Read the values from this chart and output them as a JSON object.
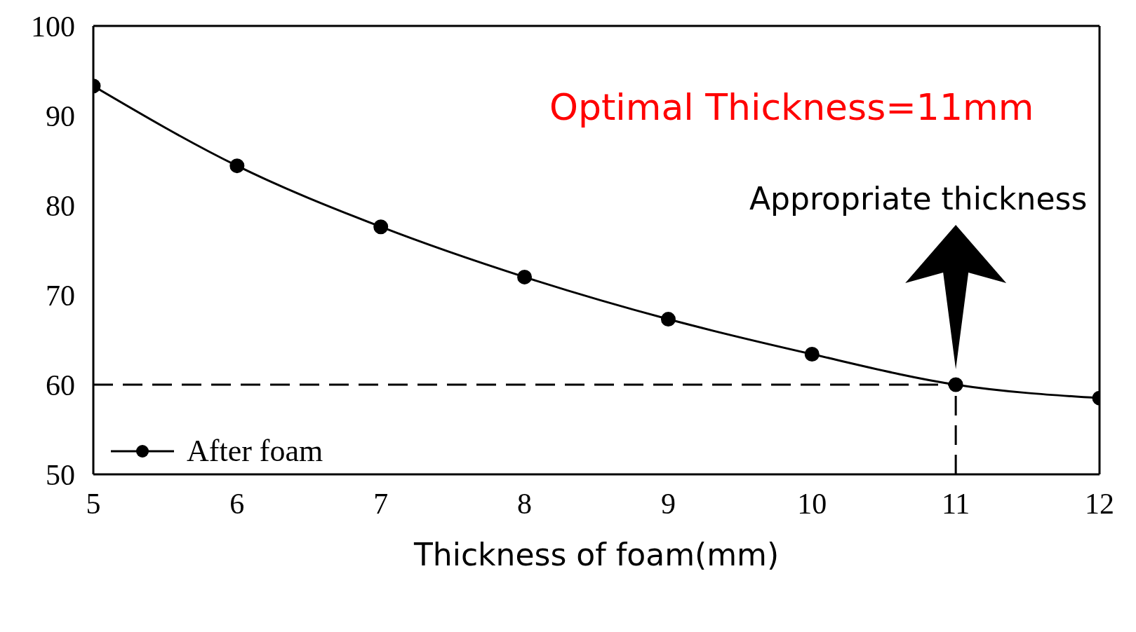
{
  "chart_data": {
    "type": "line",
    "xlabel": "Thickness of foam(mm)",
    "x": [
      5,
      6,
      7,
      8,
      9,
      10,
      11,
      12
    ],
    "series": [
      {
        "name": "After foam",
        "color": "#000000",
        "values": [
          93.3,
          84.4,
          77.6,
          72.0,
          67.3,
          63.4,
          60,
          58.5
        ]
      }
    ],
    "xlim": [
      5,
      12
    ],
    "xticks": [
      5,
      6,
      7,
      8,
      9,
      10,
      11,
      12
    ],
    "ylim": [
      50,
      100
    ],
    "yticks": [
      50,
      60,
      70,
      80,
      90,
      100
    ],
    "ref_lines": [
      {
        "axis": "y",
        "value": 60,
        "line_style": "dashed",
        "color": "#000000"
      },
      {
        "axis": "x",
        "value": 11,
        "line_style": "dashed",
        "color": "#000000"
      }
    ],
    "annotations": [
      "Optimal Thickness=11mm",
      "Appropriate thickness"
    ],
    "legend": "bottom left",
    "marker": "circle",
    "line_style": "solid"
  }
}
